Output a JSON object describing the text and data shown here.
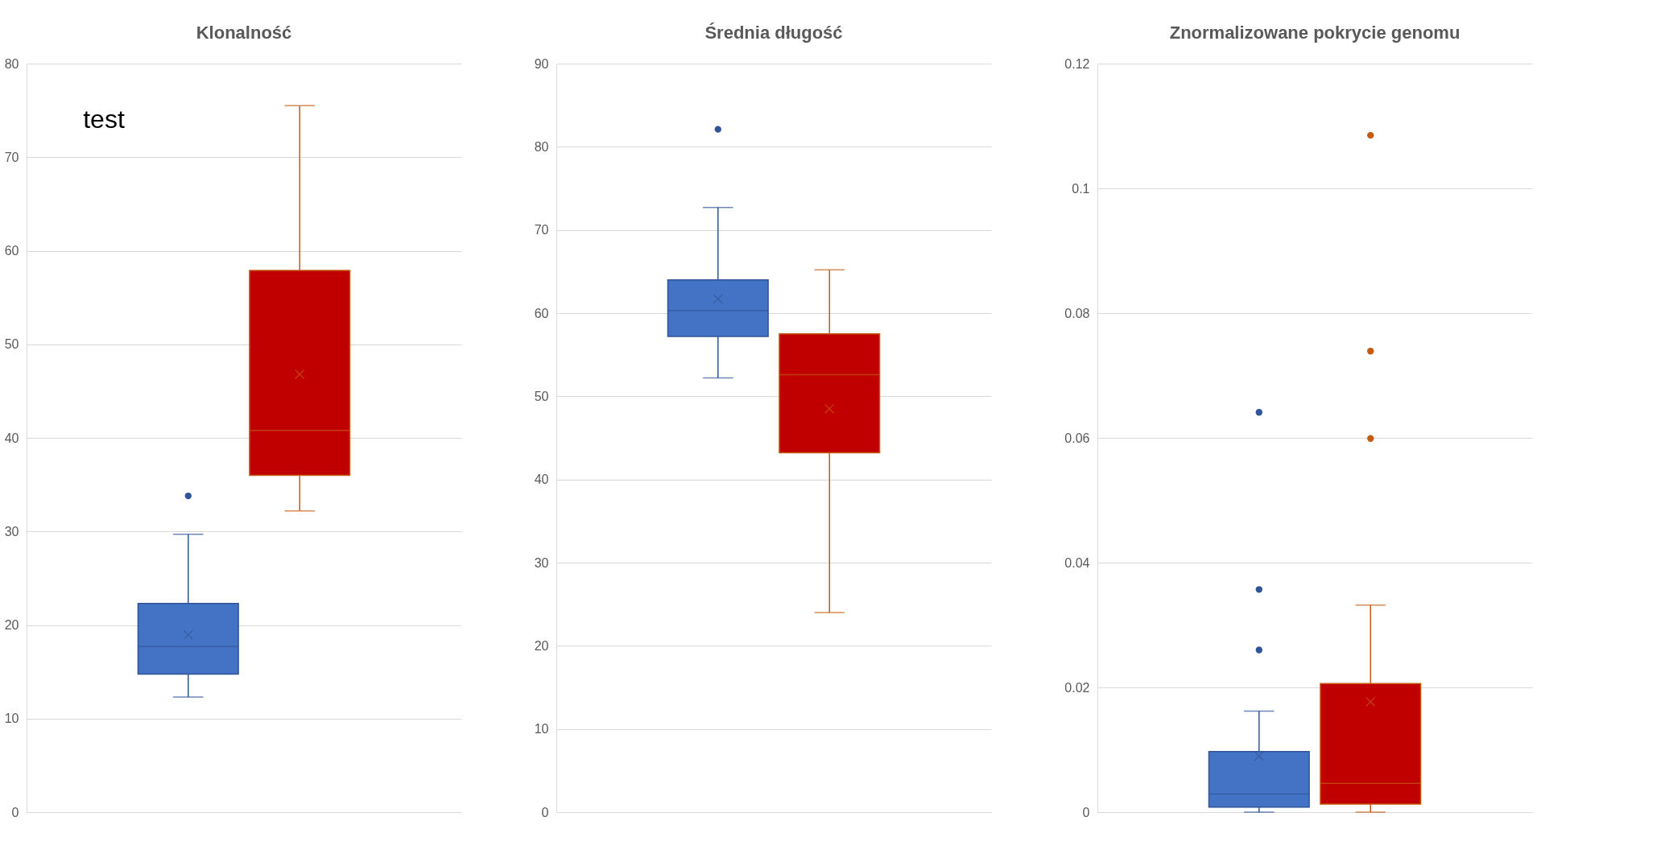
{
  "chart_data": [
    {
      "type": "box",
      "title": "Klonalność",
      "categories": [
        null
      ],
      "ylim": [
        0,
        80
      ],
      "yticks": [
        0,
        10,
        20,
        30,
        40,
        50,
        60,
        70,
        80
      ],
      "grid": "y",
      "tick_labels": "y",
      "annotations": [
        "test"
      ],
      "series": [
        {
          "color": "#4472c4",
          "boxes": [
            {
              "low": 12.3,
              "q1": 14.75,
              "median": 17.7,
              "q3": 22.3,
              "high": 29.7,
              "mean": 18.95,
              "outliers": [
                33.8
              ]
            }
          ]
        },
        {
          "color": "#c00000",
          "boxes": [
            {
              "low": 32.2,
              "q1": 36.0,
              "median": 40.8,
              "q3": 57.9,
              "high": 75.5,
              "mean": 46.8
            }
          ]
        }
      ]
    },
    {
      "type": "box",
      "title": "Średnia długość",
      "categories": [
        null
      ],
      "ylim": [
        0,
        90
      ],
      "yticks": [
        0,
        10,
        20,
        30,
        40,
        50,
        60,
        70,
        80,
        90
      ],
      "grid": "y",
      "tick_labels": "y",
      "series": [
        {
          "color": "#4472c4",
          "boxes": [
            {
              "low": 52.2,
              "q1": 57.2,
              "median": 60.3,
              "q3": 64.0,
              "high": 72.7,
              "mean": 61.7,
              "outliers": [
                82.1
              ]
            }
          ]
        },
        {
          "color": "#c00000",
          "boxes": [
            {
              "low": 24.0,
              "q1": 43.2,
              "median": 52.6,
              "q3": 57.5,
              "high": 65.2,
              "mean": 48.5
            }
          ]
        }
      ]
    },
    {
      "type": "box",
      "title": "Znormalizowane pokrycie genomu",
      "categories": [
        null
      ],
      "ylim": [
        0,
        0.12
      ],
      "yticks": [
        0,
        0.02,
        0.04,
        0.06,
        0.08,
        0.1,
        0.12
      ],
      "grid": "y",
      "tick_labels": "y",
      "series": [
        {
          "color": "#4472c4",
          "boxes": [
            {
              "low": 0,
              "q1": 0.0008,
              "median": 0.0029,
              "q3": 0.0097,
              "high": 0.0162,
              "mean": 0.009,
              "outliers": [
                0.0641,
                0.0357,
                0.026
              ]
            }
          ]
        },
        {
          "color": "#c00000",
          "boxes": [
            {
              "low": 0,
              "q1": 0.0013,
              "median": 0.0046,
              "q3": 0.0206,
              "high": 0.0332,
              "mean": 0.0177,
              "outliers": [
                0.1085,
                0.0739,
                0.0599
              ]
            }
          ]
        }
      ]
    }
  ]
}
